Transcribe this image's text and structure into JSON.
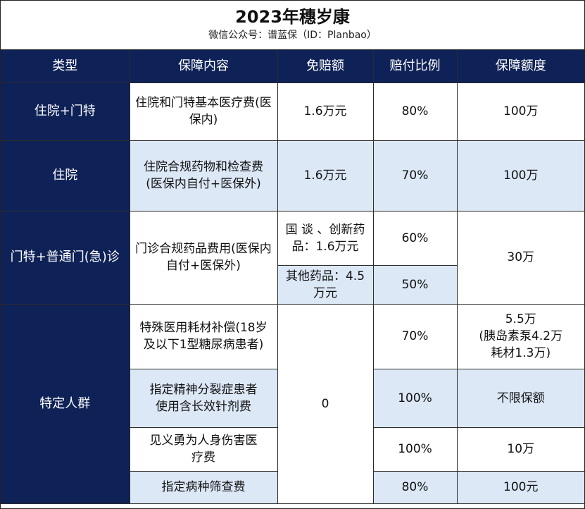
{
  "header": {
    "title": "2023年穗岁康",
    "subtitle": "微信公众号：谱蓝保（ID：Planbao）"
  },
  "columns": [
    "类型",
    "保障内容",
    "免赔额",
    "赔付比例",
    "保障额度"
  ],
  "rows": {
    "r1": {
      "type": "住院+门特",
      "content": "住院和门特基本医疗费(医保内)",
      "deductible": "1.6万元",
      "ratio": "80%",
      "amount": "100万"
    },
    "r2": {
      "type": "住院",
      "content": "住院合规药物和检查费(医保内自付+医保外)",
      "deductible": "1.6万元",
      "ratio": "70%",
      "amount": "100万"
    },
    "r3": {
      "type": "门特+普通门(急)诊",
      "content": "门诊合规药品费用(医保内自付+医保外)",
      "deductible_a": "国 谈 、创新药品：1.6万元",
      "ratio_a": "60%",
      "deductible_b": "其他药品：4.5万元",
      "ratio_b": "50%",
      "amount": "30万"
    },
    "r4": {
      "type": "特定人群",
      "deductible": "0",
      "items": [
        {
          "content": "特殊医用耗材补偿(18岁及以下1型糖尿病患者)",
          "ratio": "70%",
          "amount_l1": "5.5万",
          "amount_l2": "(胰岛素泵4.2万",
          "amount_l3": "耗材1.3万)"
        },
        {
          "content": "指定精神分裂症患者使用含长效针剂费",
          "ratio": "100%",
          "amount": "不限保额"
        },
        {
          "content": "见义勇为人身伤害医疗费",
          "ratio": "100%",
          "amount": "10万"
        },
        {
          "content": "指定病种筛查费",
          "ratio": "80%",
          "amount": "100元"
        }
      ]
    }
  }
}
